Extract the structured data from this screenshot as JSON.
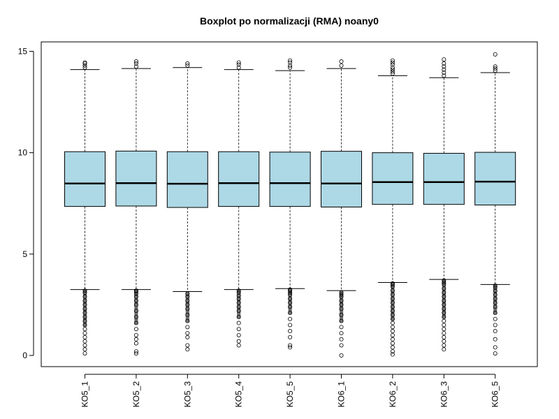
{
  "chart_data": {
    "type": "boxplot",
    "title": "Boxplot po normalizacji (RMA) noany0",
    "xlabel": "",
    "ylabel": "",
    "ylim": [
      0,
      15
    ],
    "yticks": [
      0,
      5,
      10,
      15
    ],
    "box_color": "#ADD8E6",
    "categories": [
      "KO5_1",
      "KO5_2",
      "KO5_3",
      "KO5_4",
      "KO5_5",
      "KO6_1",
      "KO6_2",
      "KO6_3",
      "KO6_5"
    ],
    "boxes": [
      {
        "lower_whisker": 3.25,
        "q1": 7.35,
        "median": 8.48,
        "q3": 10.05,
        "upper_whisker": 14.1,
        "outliers_high": [
          14.2,
          14.3,
          14.4,
          14.45
        ],
        "outliers_low": [
          0.1,
          0.3,
          0.5,
          0.7,
          0.9,
          1.1,
          1.3,
          1.5,
          1.7,
          1.9,
          2.1,
          2.3,
          2.5,
          2.7,
          2.9,
          3.1,
          3.2
        ]
      },
      {
        "lower_whisker": 3.25,
        "q1": 7.37,
        "median": 8.5,
        "q3": 10.08,
        "upper_whisker": 14.15,
        "outliers_high": [
          14.25,
          14.4,
          14.5
        ],
        "outliers_low": [
          0.1,
          0.2,
          0.6,
          0.8,
          1.0,
          1.3,
          1.6,
          1.9,
          2.2,
          2.5,
          2.7,
          2.9,
          3.05,
          3.15,
          3.2
        ]
      },
      {
        "lower_whisker": 3.15,
        "q1": 7.3,
        "median": 8.47,
        "q3": 10.05,
        "upper_whisker": 14.2,
        "outliers_high": [
          14.3,
          14.4
        ],
        "outliers_low": [
          0.3,
          0.5,
          0.9,
          1.1,
          1.4,
          1.7,
          2.0,
          2.3,
          2.5,
          2.7,
          2.9,
          3.05
        ]
      },
      {
        "lower_whisker": 3.25,
        "q1": 7.35,
        "median": 8.5,
        "q3": 10.05,
        "upper_whisker": 14.1,
        "outliers_high": [
          14.2,
          14.35,
          14.45
        ],
        "outliers_low": [
          0.5,
          0.7,
          1.0,
          1.3,
          1.6,
          1.9,
          2.2,
          2.4,
          2.6,
          2.8,
          2.95,
          3.1,
          3.2
        ]
      },
      {
        "lower_whisker": 3.3,
        "q1": 7.35,
        "median": 8.5,
        "q3": 10.03,
        "upper_whisker": 14.05,
        "outliers_high": [
          14.2,
          14.3,
          14.45,
          14.55
        ],
        "outliers_low": [
          0.4,
          0.5,
          0.9,
          1.2,
          1.5,
          1.8,
          2.1,
          2.4,
          2.6,
          2.8,
          3.0,
          3.1,
          3.2,
          3.25
        ]
      },
      {
        "lower_whisker": 3.2,
        "q1": 7.32,
        "median": 8.48,
        "q3": 10.07,
        "upper_whisker": 14.15,
        "outliers_high": [
          14.3,
          14.5
        ],
        "outliers_low": [
          0.0,
          0.5,
          0.8,
          1.1,
          1.4,
          1.7,
          2.0,
          2.3,
          2.5,
          2.7,
          2.9,
          3.0,
          3.1
        ]
      },
      {
        "lower_whisker": 3.6,
        "q1": 7.45,
        "median": 8.55,
        "q3": 10.0,
        "upper_whisker": 13.8,
        "outliers_high": [
          13.9,
          14.0,
          14.1,
          14.2,
          14.35,
          14.45,
          14.55
        ],
        "outliers_low": [
          0.05,
          0.2,
          0.4,
          0.6,
          0.8,
          1.0,
          1.2,
          1.4,
          1.6,
          1.8,
          2.0,
          2.2,
          2.4,
          2.6,
          2.8,
          3.0,
          3.2,
          3.4,
          3.5,
          3.55
        ]
      },
      {
        "lower_whisker": 3.75,
        "q1": 7.45,
        "median": 8.55,
        "q3": 9.97,
        "upper_whisker": 13.7,
        "outliers_high": [
          13.8,
          13.95,
          14.1,
          14.25,
          14.4,
          14.6
        ],
        "outliers_low": [
          0.3,
          0.5,
          0.7,
          0.9,
          1.1,
          1.3,
          1.5,
          1.7,
          1.9,
          2.1,
          2.3,
          2.5,
          2.7,
          2.9,
          3.1,
          3.3,
          3.5,
          3.6,
          3.7
        ]
      },
      {
        "lower_whisker": 3.5,
        "q1": 7.42,
        "median": 8.57,
        "q3": 10.02,
        "upper_whisker": 13.95,
        "outliers_high": [
          14.05,
          14.15,
          14.25,
          14.85
        ],
        "outliers_low": [
          0.1,
          0.4,
          0.8,
          1.2,
          1.5,
          1.8,
          2.1,
          2.4,
          2.6,
          2.8,
          3.0,
          3.2,
          3.35,
          3.45
        ]
      }
    ],
    "grid": false,
    "legend": "none"
  }
}
